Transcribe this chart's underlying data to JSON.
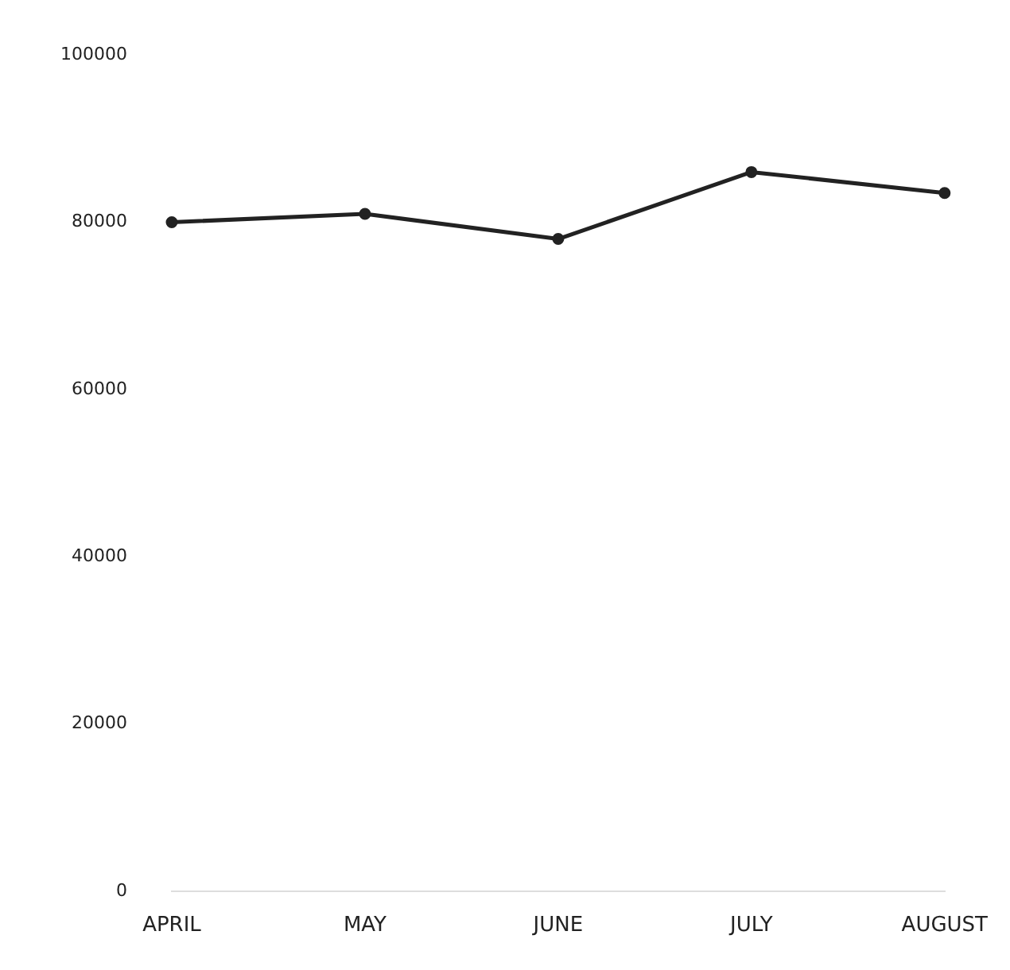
{
  "chart_data": {
    "type": "line",
    "categories": [
      "APRIL",
      "MAY",
      "JUNE",
      "JULY",
      "AUGUST"
    ],
    "series": [
      {
        "color": "#222222",
        "values": [
          80000,
          81000,
          78000,
          86000,
          83500
        ]
      }
    ],
    "ylim": [
      0,
      100000
    ],
    "yticks": [
      0,
      20000,
      40000,
      60000,
      80000,
      100000
    ],
    "grid": false,
    "legend": false,
    "marker": "circle",
    "line_style": "solid"
  }
}
